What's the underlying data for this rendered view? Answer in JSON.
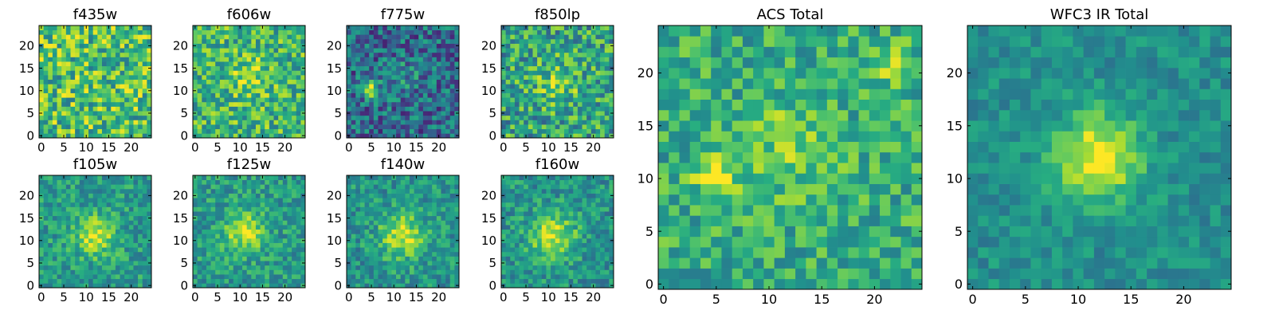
{
  "colormap": "viridis",
  "colormap_stops": [
    "#440154",
    "#472c7a",
    "#3b518b",
    "#2c718e",
    "#21908d",
    "#27ad81",
    "#5cc863",
    "#aadc32",
    "#fde725"
  ],
  "axis_color": "#000000",
  "chart_data": [
    {
      "type": "heatmap",
      "title": "f435w",
      "grid_size": 25,
      "seed": 11,
      "noise": 0.3,
      "base": 0.7,
      "sources": [],
      "xticks": [
        "0",
        "5",
        "10",
        "15",
        "20"
      ],
      "yticks": [
        "0",
        "5",
        "10",
        "15",
        "20"
      ]
    },
    {
      "type": "heatmap",
      "title": "f606w",
      "grid_size": 25,
      "seed": 23,
      "noise": 0.26,
      "base": 0.66,
      "sources": [
        {
          "x": 12,
          "y": 13,
          "sigma": 3.0,
          "amp": 0.2
        }
      ],
      "xticks": [
        "0",
        "5",
        "10",
        "15",
        "20"
      ],
      "yticks": [
        "0",
        "5",
        "10",
        "15",
        "20"
      ]
    },
    {
      "type": "heatmap",
      "title": "f775w",
      "grid_size": 25,
      "seed": 37,
      "noise": 0.26,
      "base": 0.35,
      "sources": [
        {
          "x": 5,
          "y": 10,
          "sigma": 1.2,
          "amp": 0.7
        },
        {
          "x": 12,
          "y": 13,
          "sigma": 3.0,
          "amp": 0.12
        }
      ],
      "xticks": [
        "0",
        "5",
        "10",
        "15",
        "20"
      ],
      "yticks": [
        "0",
        "5",
        "10",
        "15",
        "20"
      ]
    },
    {
      "type": "heatmap",
      "title": "f850lp",
      "grid_size": 25,
      "seed": 41,
      "noise": 0.28,
      "base": 0.58,
      "sources": [
        {
          "x": 12,
          "y": 12,
          "sigma": 3.5,
          "amp": 0.2
        }
      ],
      "xticks": [
        "0",
        "5",
        "10",
        "15",
        "20"
      ],
      "yticks": [
        "0",
        "5",
        "10",
        "15",
        "20"
      ]
    },
    {
      "type": "heatmap",
      "title": "f105w",
      "grid_size": 25,
      "seed": 53,
      "noise": 0.18,
      "base": 0.55,
      "sources": [
        {
          "x": 12,
          "y": 11,
          "sigma": 3.0,
          "amp": 0.4
        }
      ],
      "xticks": [
        "0",
        "5",
        "10",
        "15",
        "20"
      ],
      "yticks": [
        "0",
        "5",
        "10",
        "15",
        "20"
      ]
    },
    {
      "type": "heatmap",
      "title": "f125w",
      "grid_size": 25,
      "seed": 67,
      "noise": 0.18,
      "base": 0.55,
      "sources": [
        {
          "x": 11,
          "y": 12,
          "sigma": 3.0,
          "amp": 0.4
        }
      ],
      "xticks": [
        "0",
        "5",
        "10",
        "15",
        "20"
      ],
      "yticks": [
        "0",
        "5",
        "10",
        "15",
        "20"
      ]
    },
    {
      "type": "heatmap",
      "title": "f140w",
      "grid_size": 25,
      "seed": 79,
      "noise": 0.18,
      "base": 0.52,
      "sources": [
        {
          "x": 12,
          "y": 11,
          "sigma": 3.5,
          "amp": 0.4
        }
      ],
      "xticks": [
        "0",
        "5",
        "10",
        "15",
        "20"
      ],
      "yticks": [
        "0",
        "5",
        "10",
        "15",
        "20"
      ]
    },
    {
      "type": "heatmap",
      "title": "f160w",
      "grid_size": 25,
      "seed": 83,
      "noise": 0.18,
      "base": 0.52,
      "sources": [
        {
          "x": 11,
          "y": 11,
          "sigma": 3.5,
          "amp": 0.42
        }
      ],
      "xticks": [
        "0",
        "5",
        "10",
        "15",
        "20"
      ],
      "yticks": [
        "0",
        "5",
        "10",
        "15",
        "20"
      ]
    },
    {
      "type": "heatmap",
      "title": "ACS Total",
      "grid_size": 25,
      "seed": 97,
      "noise": 0.2,
      "base": 0.62,
      "sources": [
        {
          "x": 5,
          "y": 10,
          "sigma": 1.3,
          "amp": 0.45
        },
        {
          "x": 12,
          "y": 13,
          "sigma": 3.0,
          "amp": 0.18
        },
        {
          "x": 21,
          "y": 21,
          "sigma": 1.5,
          "amp": 0.2
        }
      ],
      "xticks": [
        "0",
        "5",
        "10",
        "15",
        "20"
      ],
      "yticks": [
        "0",
        "5",
        "10",
        "15",
        "20"
      ]
    },
    {
      "type": "heatmap",
      "title": "WFC3 IR Total",
      "grid_size": 25,
      "seed": 101,
      "noise": 0.12,
      "base": 0.5,
      "sources": [
        {
          "x": 12,
          "y": 12,
          "sigma": 2.8,
          "amp": 0.52
        }
      ],
      "xticks": [
        "0",
        "5",
        "10",
        "15",
        "20"
      ],
      "yticks": [
        "0",
        "5",
        "10",
        "15",
        "20"
      ]
    }
  ]
}
